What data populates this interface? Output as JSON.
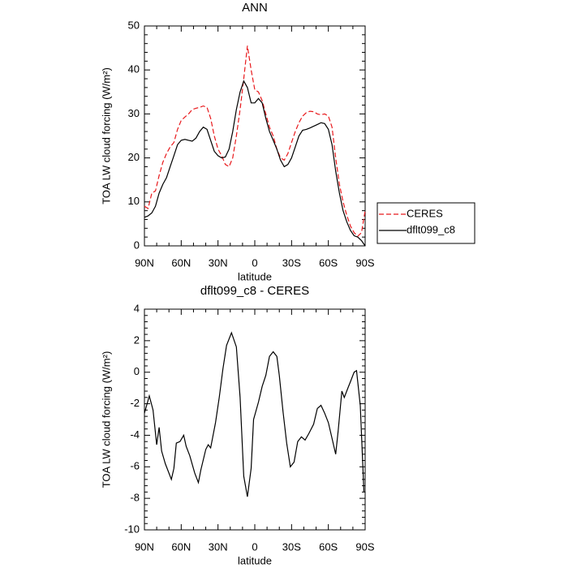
{
  "chart_data": [
    {
      "type": "line",
      "title": "ANN",
      "xlabel": "latitude",
      "ylabel": "TOA LW cloud forcing (W/m²)",
      "x": [
        90,
        87,
        84,
        81,
        78,
        75,
        72,
        69,
        66,
        63,
        60,
        57,
        54,
        51,
        48,
        45,
        42,
        39,
        36,
        33,
        30,
        27,
        24,
        21,
        18,
        15,
        12,
        9,
        6,
        3,
        0,
        -3,
        -6,
        -9,
        -12,
        -15,
        -18,
        -21,
        -24,
        -27,
        -30,
        -33,
        -36,
        -39,
        -42,
        -45,
        -48,
        -51,
        -54,
        -57,
        -60,
        -63,
        -66,
        -69,
        -72,
        -75,
        -78,
        -81,
        -84,
        -87,
        -90
      ],
      "series": [
        {
          "name": "CERES",
          "color": "#e8191c",
          "dash": true,
          "values": [
            9,
            8.5,
            12,
            12.5,
            16,
            19,
            21,
            22.5,
            23.5,
            26.5,
            28.5,
            29.3,
            30,
            31,
            31.3,
            31.5,
            31.8,
            31.5,
            29,
            25,
            22,
            20.5,
            18.5,
            18,
            20,
            25,
            31,
            38,
            45.5,
            40,
            35.5,
            35,
            33,
            30,
            27,
            25,
            22,
            20,
            19.5,
            21,
            23.5,
            26,
            28,
            29.5,
            30.3,
            30.6,
            30.5,
            30,
            29.8,
            30,
            29.5,
            27,
            20,
            14,
            10,
            7,
            4.5,
            3,
            2.2,
            3,
            8
          ]
        },
        {
          "name": "dflt099_c8",
          "color": "#000000",
          "dash": false,
          "values": [
            6.5,
            6.8,
            7.5,
            9,
            12,
            14,
            15.5,
            18,
            20.5,
            23,
            24,
            24.2,
            24,
            23.8,
            24.5,
            26,
            27,
            26.5,
            24,
            21.5,
            20.5,
            20,
            20.2,
            22,
            26,
            31,
            35,
            37.5,
            36,
            32.5,
            32.5,
            33.5,
            32.5,
            29,
            26,
            24,
            22,
            19.5,
            18,
            18.5,
            20,
            22.5,
            25,
            26.3,
            26.5,
            26.8,
            27.2,
            27.6,
            28,
            27.8,
            26.5,
            23,
            17,
            12,
            8,
            5.5,
            3.5,
            2.3,
            2,
            1.2,
            0
          ]
        }
      ],
      "xlim": [
        90,
        -90
      ],
      "xticks": [
        {
          "value": 90,
          "label": "90N"
        },
        {
          "value": 60,
          "label": "60N"
        },
        {
          "value": 30,
          "label": "30N"
        },
        0,
        {
          "value": -30,
          "label": "30S"
        },
        {
          "value": -60,
          "label": "60S"
        },
        {
          "value": -90,
          "label": "90S"
        }
      ],
      "ylim": [
        0,
        50
      ],
      "yticks": [
        0,
        10,
        20,
        30,
        40,
        50
      ],
      "legend": "outside-right"
    },
    {
      "type": "line",
      "title": "dflt099_c8 - CERES",
      "xlabel": "latitude",
      "ylabel": "TOA LW cloud forcing (W/m²)",
      "x": [
        90,
        86,
        83,
        80,
        78,
        76,
        73,
        68,
        66,
        64,
        61,
        58,
        56,
        53,
        49,
        46,
        44,
        40,
        38,
        36,
        32,
        29,
        26,
        23,
        19,
        15,
        12,
        9,
        6,
        3,
        1,
        -3,
        -6,
        -9,
        -12,
        -15,
        -18,
        -20,
        -23,
        -26,
        -29,
        -32,
        -35,
        -38,
        -41,
        -44,
        -48,
        -51,
        -54,
        -57,
        -60,
        -63,
        -66,
        -68,
        -71,
        -73,
        -76,
        -78,
        -81,
        -83,
        -86,
        -89
      ],
      "series": [
        {
          "name": "dflt099_c8 - CERES",
          "color": "#000000",
          "dash": false,
          "values": [
            -2.6,
            -1.5,
            -2.4,
            -4.6,
            -3.5,
            -5,
            -5.8,
            -6.8,
            -6.1,
            -4.5,
            -4.4,
            -4,
            -4.7,
            -5.3,
            -6.4,
            -7,
            -6.2,
            -4.9,
            -4.6,
            -4.8,
            -3.2,
            -1.6,
            0.2,
            1.7,
            2.5,
            1.6,
            -1.6,
            -6.6,
            -7.9,
            -6.1,
            -3,
            -1.9,
            -0.9,
            -0.2,
            1,
            1.3,
            1,
            -0.2,
            -2.5,
            -4.5,
            -6,
            -5.7,
            -4.4,
            -4.1,
            -4.3,
            -3.9,
            -3.3,
            -2.3,
            -2.1,
            -2.6,
            -3.2,
            -4.2,
            -5.2,
            -3.7,
            -1.2,
            -1.6,
            -1,
            -0.6,
            0,
            0.1,
            -2.1,
            -7.6
          ]
        }
      ],
      "xlim": [
        90,
        -90
      ],
      "xticks": [
        {
          "value": 90,
          "label": "90N"
        },
        {
          "value": 60,
          "label": "60N"
        },
        {
          "value": 30,
          "label": "30N"
        },
        0,
        {
          "value": -30,
          "label": "30S"
        },
        {
          "value": -60,
          "label": "60S"
        },
        {
          "value": -90,
          "label": "90S"
        }
      ],
      "ylim": [
        -10,
        4
      ],
      "yticks": [
        -10,
        -8,
        -6,
        -4,
        -2,
        0,
        2,
        4
      ]
    }
  ]
}
